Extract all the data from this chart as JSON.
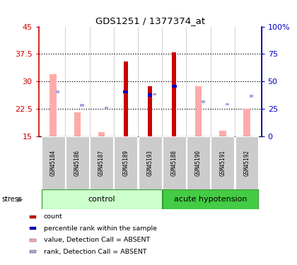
{
  "title": "GDS1251 / 1377374_at",
  "samples": [
    "GSM45184",
    "GSM45186",
    "GSM45187",
    "GSM45189",
    "GSM45193",
    "GSM45188",
    "GSM45190",
    "GSM45191",
    "GSM45192"
  ],
  "red_bars": [
    0,
    0,
    0,
    35.5,
    28.8,
    38.0,
    0,
    0,
    0
  ],
  "blue_squares": [
    0,
    0,
    0,
    27.2,
    26.3,
    28.7,
    0,
    0,
    0
  ],
  "pink_bars": [
    32.0,
    21.5,
    16.2,
    0,
    0,
    0,
    28.8,
    16.5,
    22.5
  ],
  "lavender_squares": [
    27.2,
    23.5,
    22.8,
    0,
    26.5,
    0,
    24.5,
    23.8,
    26.0
  ],
  "ylim_left": [
    15,
    45
  ],
  "ylim_right": [
    0,
    100
  ],
  "yticks_left": [
    15,
    22.5,
    30,
    37.5,
    45
  ],
  "ytick_labels_left": [
    "15",
    "22.5",
    "30",
    "37.5",
    "45"
  ],
  "yticks_right": [
    0,
    25,
    50,
    75,
    100
  ],
  "ytick_labels_right": [
    "0",
    "25",
    "50",
    "75",
    "100%"
  ],
  "hlines": [
    22.5,
    30,
    37.5
  ],
  "bar_bottom": 15,
  "red_bar_width": 0.18,
  "pink_bar_width": 0.28,
  "legend_items": [
    {
      "color": "#cc0000",
      "label": "count"
    },
    {
      "color": "#0000cc",
      "label": "percentile rank within the sample"
    },
    {
      "color": "#ffaaaa",
      "label": "value, Detection Call = ABSENT"
    },
    {
      "color": "#aaaadd",
      "label": "rank, Detection Call = ABSENT"
    }
  ],
  "control_color": "#ccffcc",
  "hypotension_color": "#44cc44",
  "sample_label_bg": "#cccccc"
}
